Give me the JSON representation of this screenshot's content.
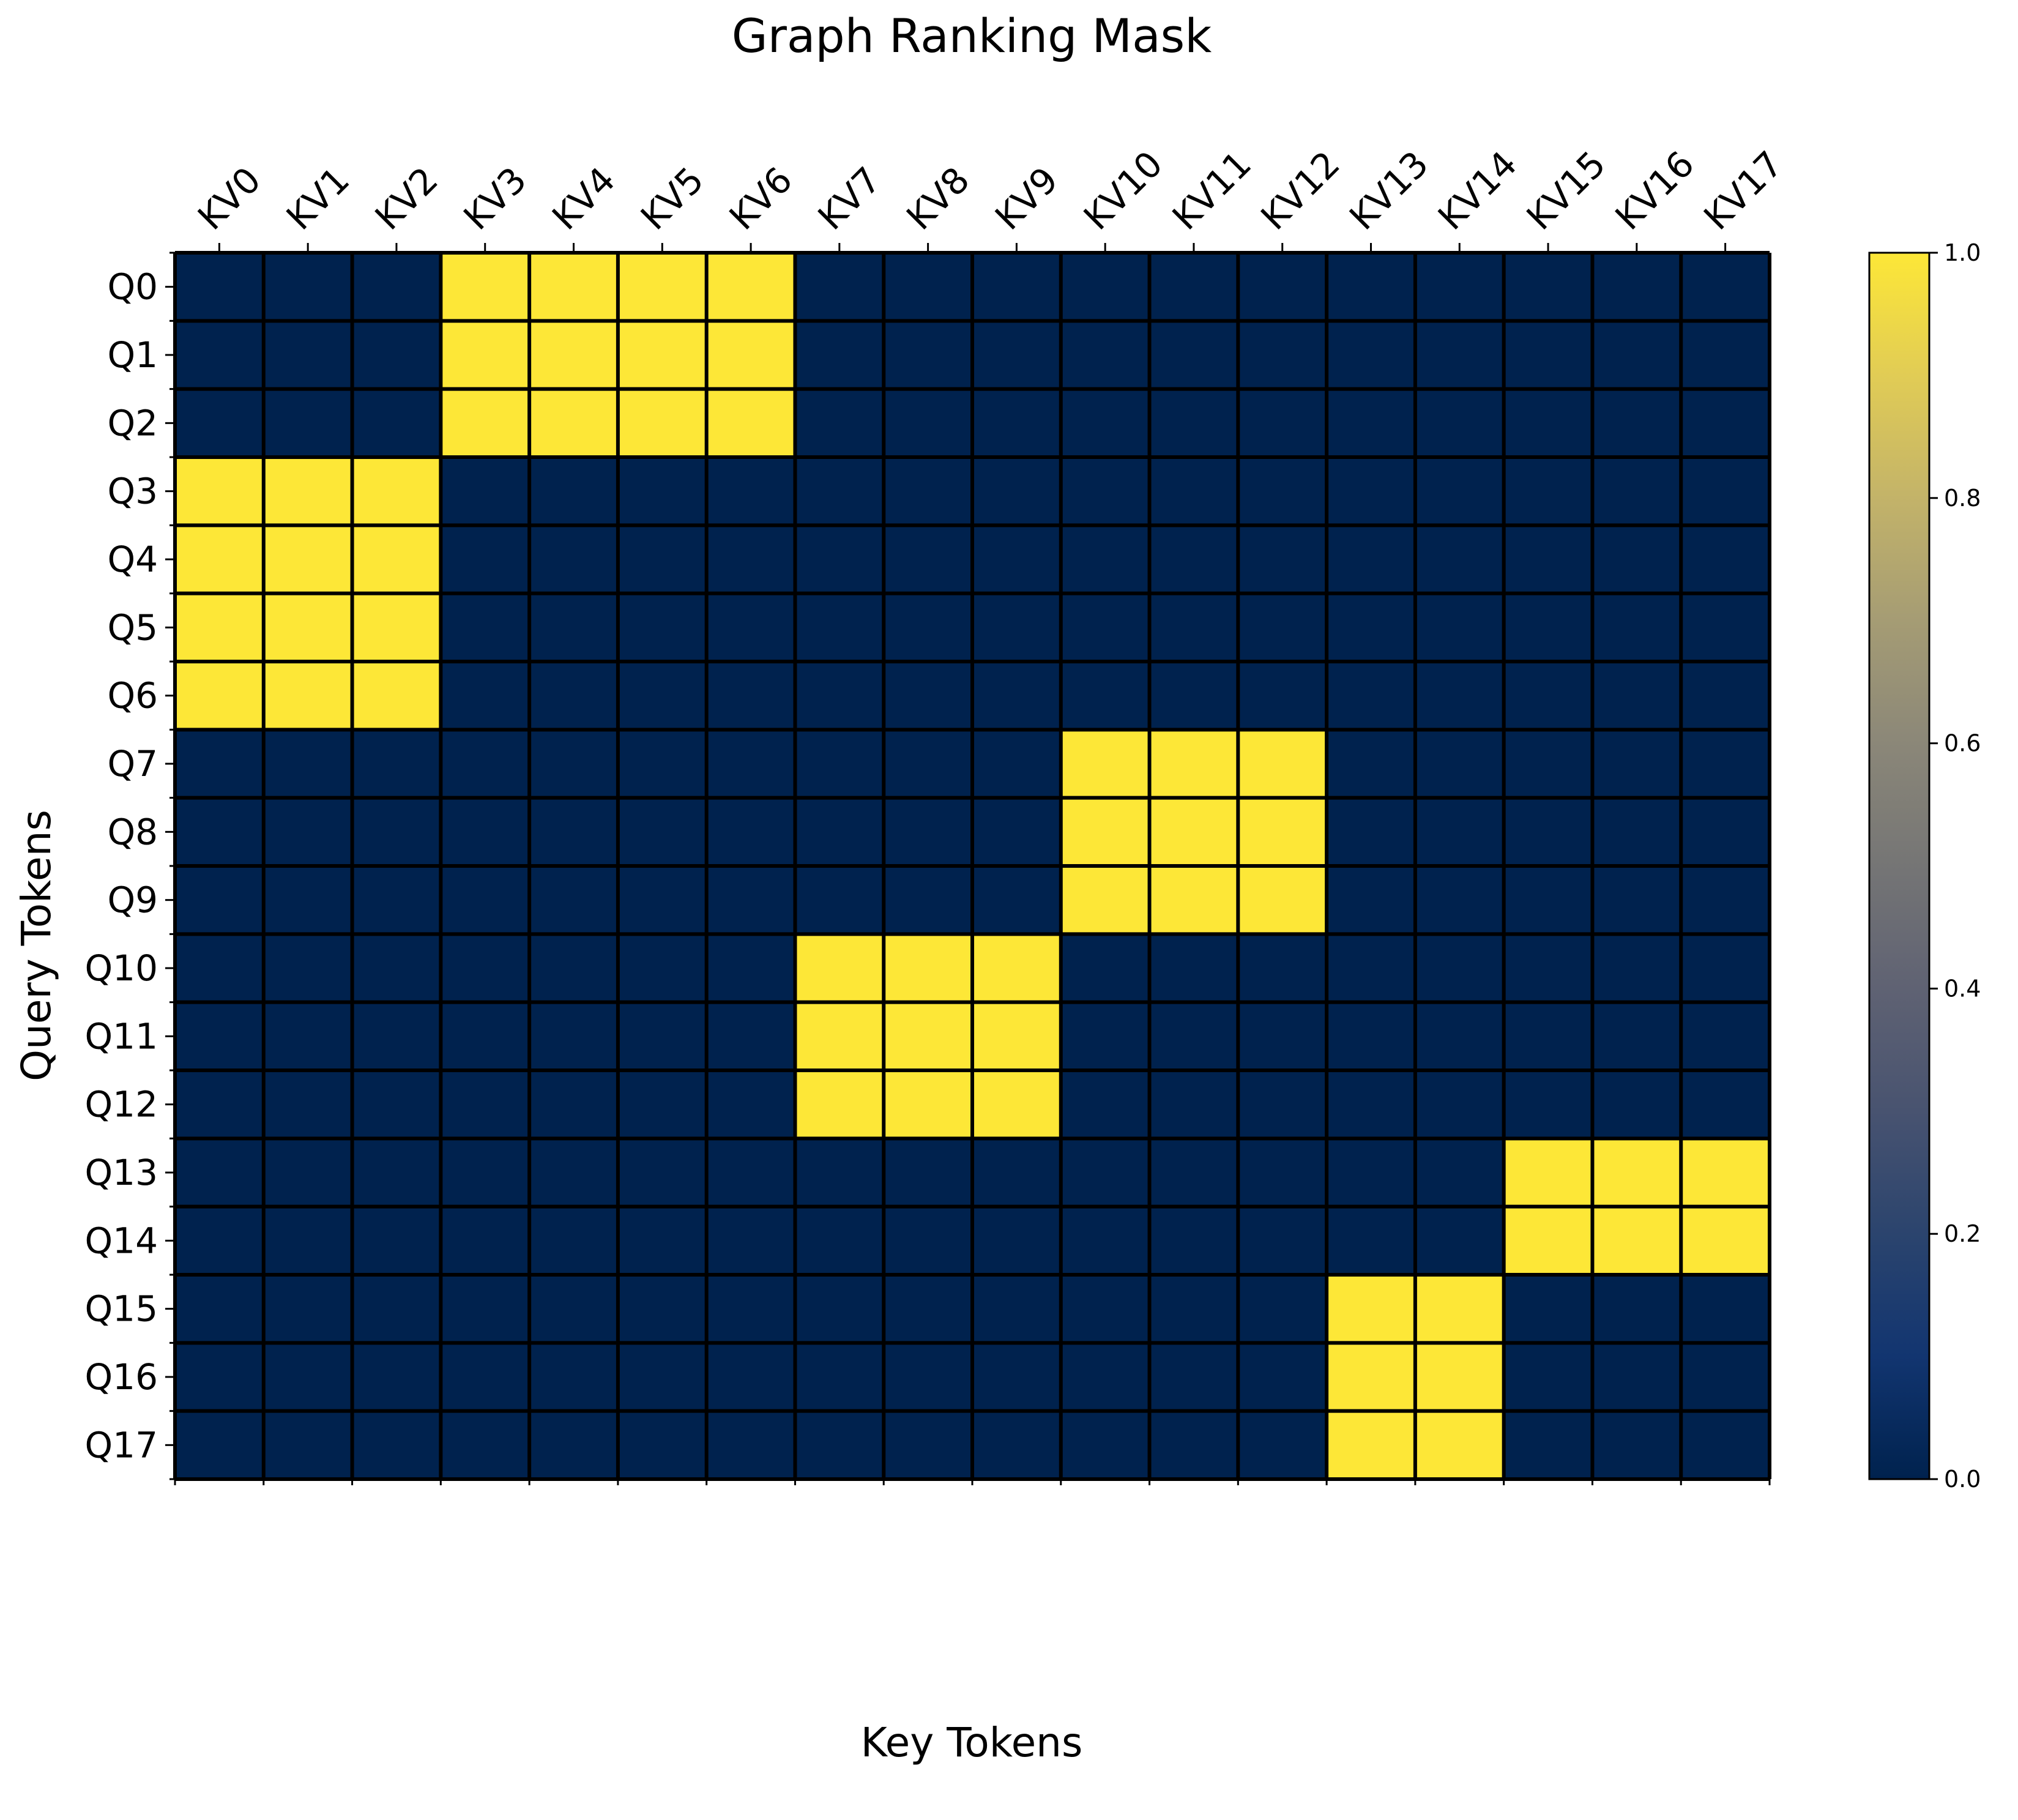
{
  "chart_data": {
    "type": "heatmap",
    "title": "Graph Ranking Mask",
    "xlabel": "Key Tokens",
    "ylabel": "Query Tokens",
    "x_categories": [
      "KV0",
      "KV1",
      "KV2",
      "KV3",
      "KV4",
      "KV5",
      "KV6",
      "KV7",
      "KV8",
      "KV9",
      "KV10",
      "KV11",
      "KV12",
      "KV13",
      "KV14",
      "KV15",
      "KV16",
      "KV17"
    ],
    "y_categories": [
      "Q0",
      "Q1",
      "Q2",
      "Q3",
      "Q4",
      "Q5",
      "Q6",
      "Q7",
      "Q8",
      "Q9",
      "Q10",
      "Q11",
      "Q12",
      "Q13",
      "Q14",
      "Q15",
      "Q16",
      "Q17"
    ],
    "values": [
      [
        0,
        0,
        0,
        1,
        1,
        1,
        1,
        0,
        0,
        0,
        0,
        0,
        0,
        0,
        0,
        0,
        0,
        0
      ],
      [
        0,
        0,
        0,
        1,
        1,
        1,
        1,
        0,
        0,
        0,
        0,
        0,
        0,
        0,
        0,
        0,
        0,
        0
      ],
      [
        0,
        0,
        0,
        1,
        1,
        1,
        1,
        0,
        0,
        0,
        0,
        0,
        0,
        0,
        0,
        0,
        0,
        0
      ],
      [
        1,
        1,
        1,
        0,
        0,
        0,
        0,
        0,
        0,
        0,
        0,
        0,
        0,
        0,
        0,
        0,
        0,
        0
      ],
      [
        1,
        1,
        1,
        0,
        0,
        0,
        0,
        0,
        0,
        0,
        0,
        0,
        0,
        0,
        0,
        0,
        0,
        0
      ],
      [
        1,
        1,
        1,
        0,
        0,
        0,
        0,
        0,
        0,
        0,
        0,
        0,
        0,
        0,
        0,
        0,
        0,
        0
      ],
      [
        1,
        1,
        1,
        0,
        0,
        0,
        0,
        0,
        0,
        0,
        0,
        0,
        0,
        0,
        0,
        0,
        0,
        0
      ],
      [
        0,
        0,
        0,
        0,
        0,
        0,
        0,
        0,
        0,
        0,
        1,
        1,
        1,
        0,
        0,
        0,
        0,
        0
      ],
      [
        0,
        0,
        0,
        0,
        0,
        0,
        0,
        0,
        0,
        0,
        1,
        1,
        1,
        0,
        0,
        0,
        0,
        0
      ],
      [
        0,
        0,
        0,
        0,
        0,
        0,
        0,
        0,
        0,
        0,
        1,
        1,
        1,
        0,
        0,
        0,
        0,
        0
      ],
      [
        0,
        0,
        0,
        0,
        0,
        0,
        0,
        1,
        1,
        1,
        0,
        0,
        0,
        0,
        0,
        0,
        0,
        0
      ],
      [
        0,
        0,
        0,
        0,
        0,
        0,
        0,
        1,
        1,
        1,
        0,
        0,
        0,
        0,
        0,
        0,
        0,
        0
      ],
      [
        0,
        0,
        0,
        0,
        0,
        0,
        0,
        1,
        1,
        1,
        0,
        0,
        0,
        0,
        0,
        0,
        0,
        0
      ],
      [
        0,
        0,
        0,
        0,
        0,
        0,
        0,
        0,
        0,
        0,
        0,
        0,
        0,
        0,
        0,
        1,
        1,
        1
      ],
      [
        0,
        0,
        0,
        0,
        0,
        0,
        0,
        0,
        0,
        0,
        0,
        0,
        0,
        0,
        0,
        1,
        1,
        1
      ],
      [
        0,
        0,
        0,
        0,
        0,
        0,
        0,
        0,
        0,
        0,
        0,
        0,
        0,
        1,
        1,
        0,
        0,
        0
      ],
      [
        0,
        0,
        0,
        0,
        0,
        0,
        0,
        0,
        0,
        0,
        0,
        0,
        0,
        1,
        1,
        0,
        0,
        0
      ],
      [
        0,
        0,
        0,
        0,
        0,
        0,
        0,
        0,
        0,
        0,
        0,
        0,
        0,
        1,
        1,
        0,
        0,
        0
      ]
    ],
    "colorbar": {
      "colormap": "cividis",
      "range": [
        0,
        1
      ],
      "ticks": [
        "0.0",
        "0.2",
        "0.4",
        "0.6",
        "0.8",
        "1.0"
      ]
    },
    "colors": {
      "low": "#00224e",
      "high": "#fde737",
      "gridline": "#000000"
    },
    "x_tick_label_rotation_deg": 45,
    "grid": true
  }
}
